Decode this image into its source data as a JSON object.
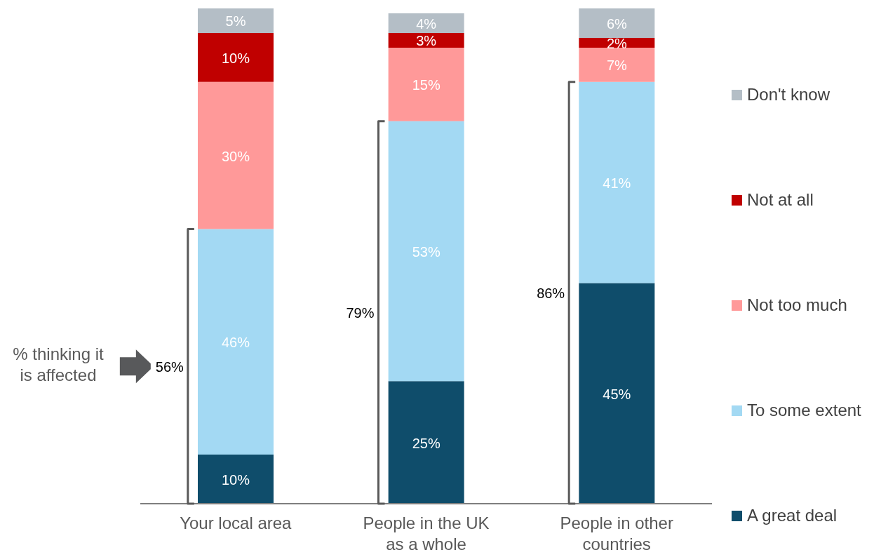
{
  "chart_data": {
    "type": "bar",
    "stacked": true,
    "categories": [
      "Your local area",
      "People in the UK as a whole",
      "People in other countries"
    ],
    "series": [
      {
        "name": "A great deal",
        "color": "#0f4d6b",
        "values": [
          10,
          25,
          45
        ],
        "value_labels": [
          "10%",
          "25%",
          "45%"
        ]
      },
      {
        "name": "To some extent",
        "color": "#a3d9f3",
        "values": [
          46,
          53,
          41
        ],
        "value_labels": [
          "46%",
          "53%",
          "41%"
        ]
      },
      {
        "name": "Not too much",
        "color": "#ff9999",
        "values": [
          30,
          15,
          7
        ],
        "value_labels": [
          "30%",
          "15%",
          "7%"
        ]
      },
      {
        "name": "Not at all",
        "color": "#c00000",
        "values": [
          10,
          3,
          2
        ],
        "value_labels": [
          "10%",
          "3%",
          "2%"
        ]
      },
      {
        "name": "Don't know",
        "color": "#b4bec6",
        "values": [
          5,
          4,
          6
        ],
        "value_labels": [
          "5%",
          "4%",
          "6%"
        ]
      }
    ],
    "legend": "right",
    "annotations": [
      "% thinking it is affected",
      "56%",
      "79%",
      "86%"
    ]
  }
}
